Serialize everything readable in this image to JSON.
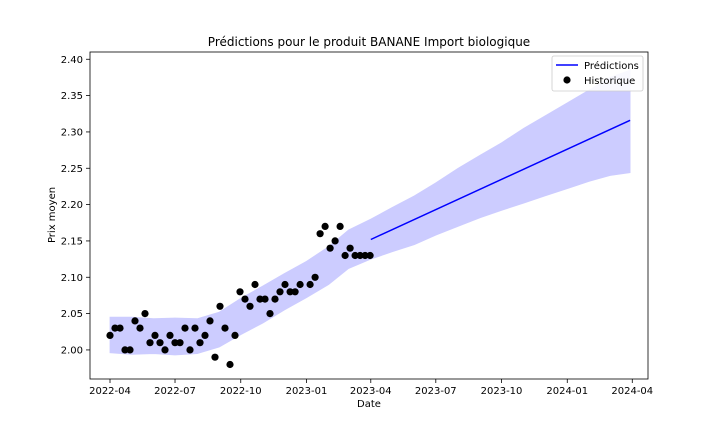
{
  "chart_data": {
    "type": "line",
    "title": "Prédictions pour le produit BANANE Import biologique",
    "xlabel": "Date",
    "ylabel": "Prix moyen",
    "xlim": [
      "2022-03-04",
      "2024-04-23"
    ],
    "ylim": [
      1.96,
      2.41
    ],
    "x_ticks": [
      "2022-04",
      "2022-07",
      "2022-10",
      "2023-01",
      "2023-04",
      "2023-07",
      "2023-10",
      "2024-01",
      "2024-04"
    ],
    "y_ticks": [
      "2.00",
      "2.05",
      "2.10",
      "2.15",
      "2.20",
      "2.25",
      "2.30",
      "2.35",
      "2.40"
    ],
    "legend": {
      "placement": "top-right",
      "entries": [
        "Prédictions",
        "Historique"
      ]
    },
    "colors": {
      "prediction": "#0000ff",
      "band": "#ccccff",
      "history": "#000000"
    },
    "series": [
      {
        "name": "Historique",
        "type": "scatter",
        "points": [
          [
            "2022-04-01",
            2.02
          ],
          [
            "2022-04-08",
            2.03
          ],
          [
            "2022-04-15",
            2.03
          ],
          [
            "2022-04-22",
            2.0
          ],
          [
            "2022-04-29",
            2.0
          ],
          [
            "2022-05-06",
            2.04
          ],
          [
            "2022-05-13",
            2.03
          ],
          [
            "2022-05-20",
            2.05
          ],
          [
            "2022-05-27",
            2.01
          ],
          [
            "2022-06-03",
            2.02
          ],
          [
            "2022-06-10",
            2.01
          ],
          [
            "2022-06-17",
            2.0
          ],
          [
            "2022-06-24",
            2.02
          ],
          [
            "2022-07-01",
            2.01
          ],
          [
            "2022-07-08",
            2.01
          ],
          [
            "2022-07-15",
            2.03
          ],
          [
            "2022-07-22",
            2.0
          ],
          [
            "2022-07-29",
            2.03
          ],
          [
            "2022-08-05",
            2.01
          ],
          [
            "2022-08-12",
            2.02
          ],
          [
            "2022-08-19",
            2.04
          ],
          [
            "2022-08-26",
            1.99
          ],
          [
            "2022-09-02",
            2.06
          ],
          [
            "2022-09-09",
            2.03
          ],
          [
            "2022-09-16",
            1.98
          ],
          [
            "2022-09-23",
            2.02
          ],
          [
            "2022-09-30",
            2.08
          ],
          [
            "2022-10-07",
            2.07
          ],
          [
            "2022-10-14",
            2.06
          ],
          [
            "2022-10-21",
            2.09
          ],
          [
            "2022-10-28",
            2.07
          ],
          [
            "2022-11-04",
            2.07
          ],
          [
            "2022-11-11",
            2.05
          ],
          [
            "2022-11-18",
            2.07
          ],
          [
            "2022-11-25",
            2.08
          ],
          [
            "2022-12-02",
            2.09
          ],
          [
            "2022-12-09",
            2.08
          ],
          [
            "2022-12-16",
            2.08
          ],
          [
            "2022-12-23",
            2.09
          ],
          [
            "2023-01-06",
            2.09
          ],
          [
            "2023-01-13",
            2.1
          ],
          [
            "2023-01-20",
            2.16
          ],
          [
            "2023-01-27",
            2.17
          ],
          [
            "2023-02-03",
            2.14
          ],
          [
            "2023-02-10",
            2.15
          ],
          [
            "2023-02-17",
            2.17
          ],
          [
            "2023-02-24",
            2.13
          ],
          [
            "2023-03-03",
            2.14
          ],
          [
            "2023-03-10",
            2.13
          ],
          [
            "2023-03-17",
            2.13
          ],
          [
            "2023-03-24",
            2.13
          ],
          [
            "2023-03-31",
            2.13
          ]
        ]
      },
      {
        "name": "Prédictions",
        "type": "line",
        "points": [
          [
            "2023-04-01",
            2.152
          ],
          [
            "2024-03-29",
            2.316
          ]
        ]
      }
    ],
    "confidence_band": {
      "points": [
        [
          "2022-04-01",
          1.996,
          2.045
        ],
        [
          "2022-05-01",
          1.994,
          2.045
        ],
        [
          "2022-06-01",
          1.995,
          2.043
        ],
        [
          "2022-07-01",
          1.993,
          2.044
        ],
        [
          "2022-08-01",
          1.995,
          2.043
        ],
        [
          "2022-09-01",
          2.004,
          2.052
        ],
        [
          "2022-10-01",
          2.021,
          2.071
        ],
        [
          "2022-11-01",
          2.037,
          2.088
        ],
        [
          "2022-12-01",
          2.055,
          2.105
        ],
        [
          "2023-01-01",
          2.072,
          2.122
        ],
        [
          "2023-02-01",
          2.09,
          2.142
        ],
        [
          "2023-03-01",
          2.112,
          2.165
        ],
        [
          "2023-04-01",
          2.125,
          2.18
        ],
        [
          "2023-05-01",
          2.135,
          2.196
        ],
        [
          "2023-06-01",
          2.145,
          2.212
        ],
        [
          "2023-07-01",
          2.158,
          2.23
        ],
        [
          "2023-08-01",
          2.17,
          2.25
        ],
        [
          "2023-09-01",
          2.182,
          2.268
        ],
        [
          "2023-10-01",
          2.192,
          2.285
        ],
        [
          "2023-11-01",
          2.202,
          2.305
        ],
        [
          "2023-12-01",
          2.212,
          2.322
        ],
        [
          "2024-01-01",
          2.222,
          2.34
        ],
        [
          "2024-02-01",
          2.232,
          2.358
        ],
        [
          "2024-03-01",
          2.24,
          2.375
        ],
        [
          "2024-03-29",
          2.244,
          2.385
        ]
      ]
    }
  }
}
